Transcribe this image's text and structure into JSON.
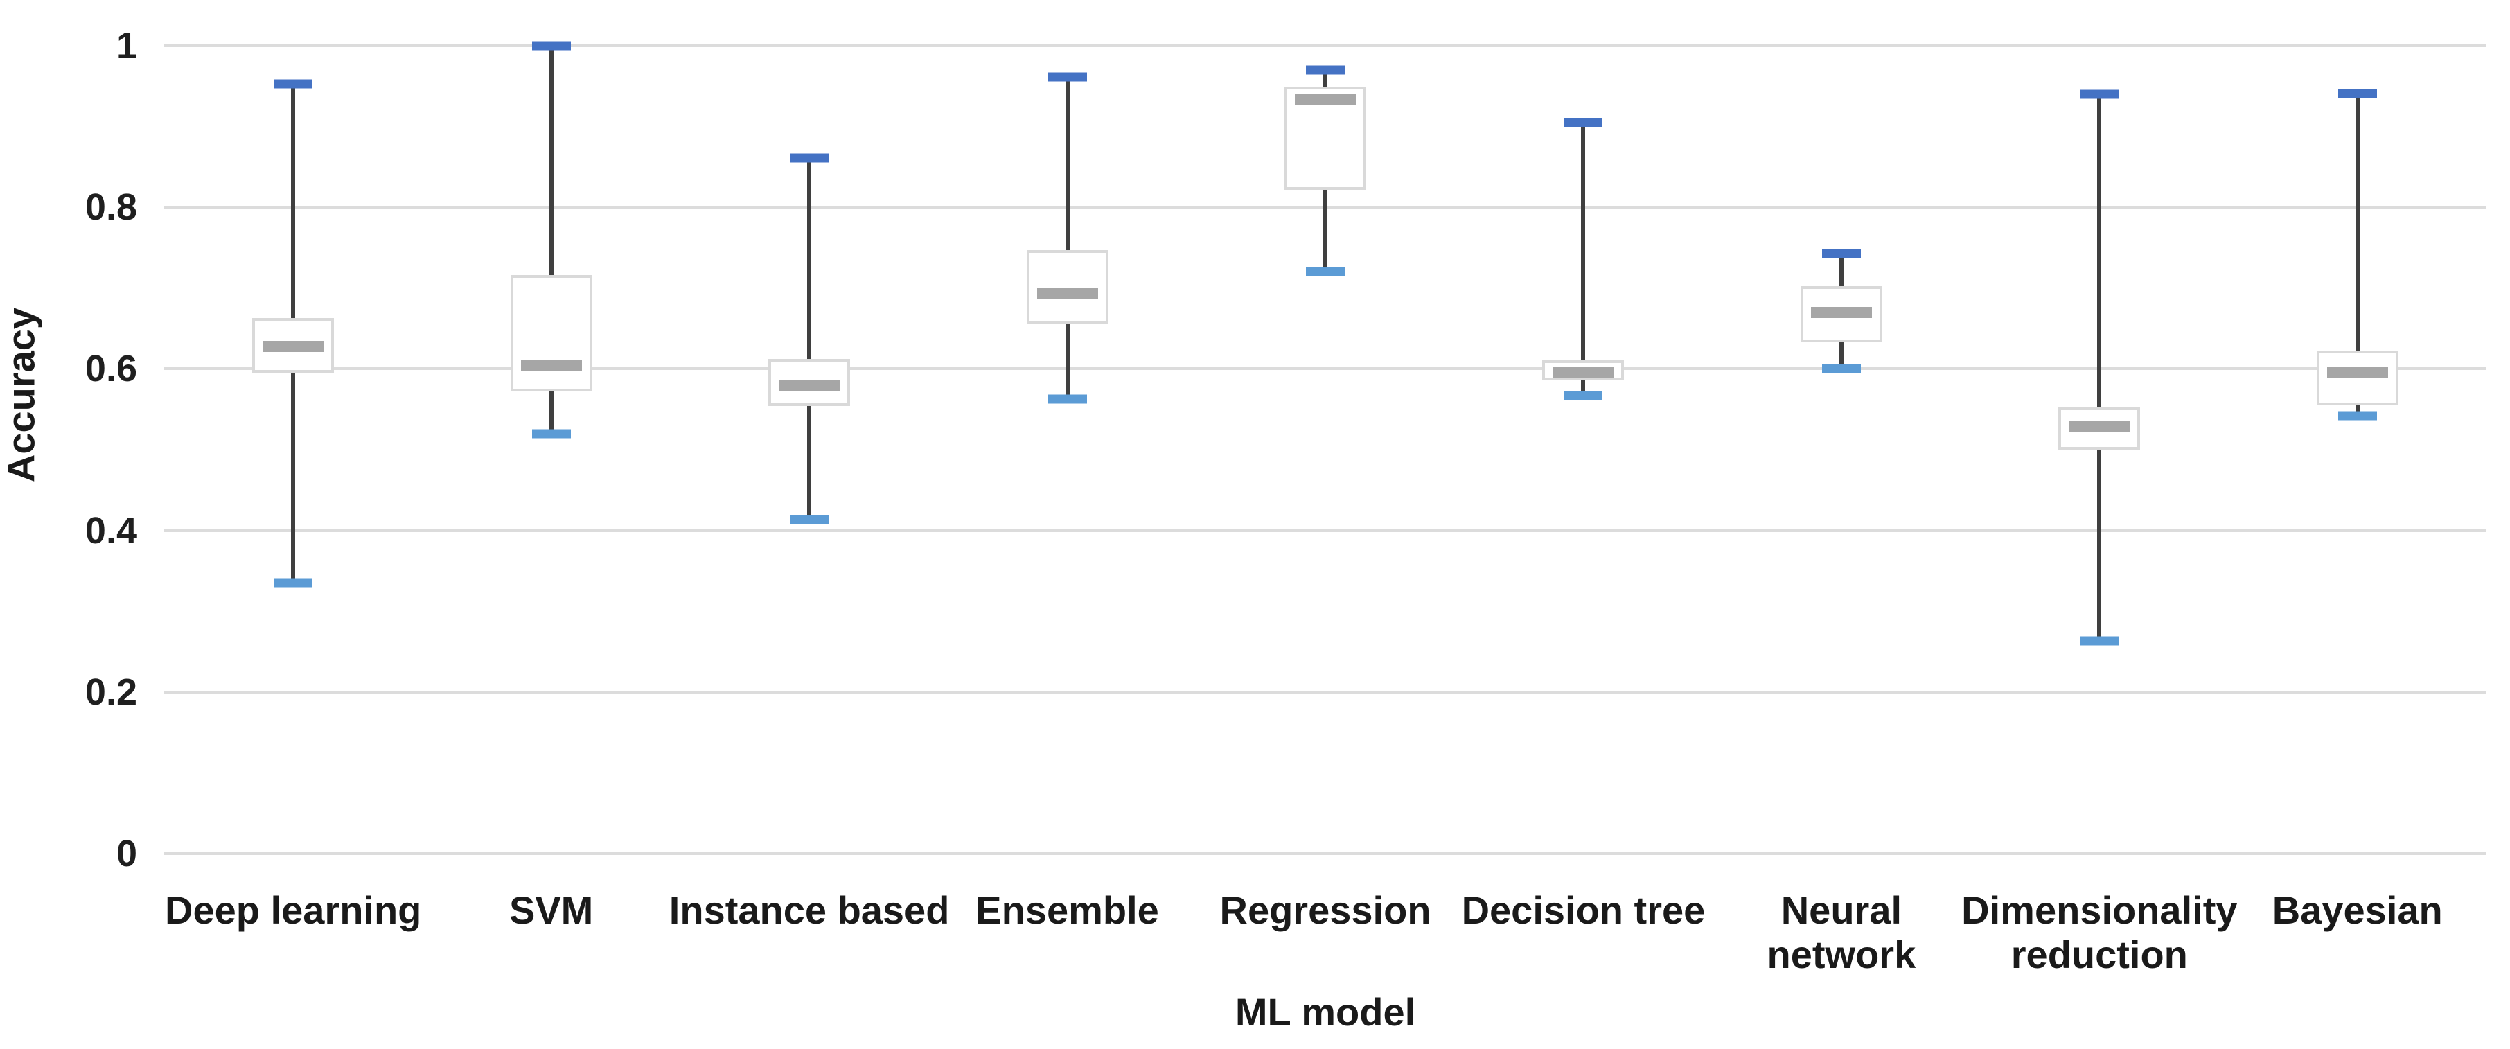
{
  "chart_data": {
    "type": "box",
    "title": "",
    "xlabel": "ML model",
    "ylabel": "Accuracy",
    "ylim": [
      0,
      1
    ],
    "yticks": [
      {
        "value": 0,
        "label": "0"
      },
      {
        "value": 0.2,
        "label": "0.2"
      },
      {
        "value": 0.4,
        "label": "0.4"
      },
      {
        "value": 0.6,
        "label": "0.6"
      },
      {
        "value": 0.8,
        "label": "0.8"
      },
      {
        "value": 1,
        "label": "1"
      }
    ],
    "grid": "horizontal",
    "legend": "none",
    "categories": [
      "Deep learning",
      "SVM",
      "Instance based",
      "Ensemble",
      "Regression",
      "Decision tree",
      "Neural network",
      "Dimensionality reduction",
      "Bayesian"
    ],
    "series": [
      {
        "name": "Deep learning",
        "label_lines": [
          "Deep learning"
        ],
        "min": 0.335,
        "q1": 0.595,
        "median": 0.628,
        "q3": 0.663,
        "max": 0.953
      },
      {
        "name": "SVM",
        "label_lines": [
          "SVM"
        ],
        "min": 0.52,
        "q1": 0.572,
        "median": 0.605,
        "q3": 0.716,
        "max": 1.0
      },
      {
        "name": "Instance based",
        "label_lines": [
          "Instance based"
        ],
        "min": 0.413,
        "q1": 0.554,
        "median": 0.58,
        "q3": 0.612,
        "max": 0.861
      },
      {
        "name": "Ensemble",
        "label_lines": [
          "Ensemble"
        ],
        "min": 0.563,
        "q1": 0.655,
        "median": 0.693,
        "q3": 0.747,
        "max": 0.961
      },
      {
        "name": "Regression",
        "label_lines": [
          "Regression"
        ],
        "min": 0.72,
        "q1": 0.822,
        "median": 0.933,
        "q3": 0.949,
        "max": 0.97
      },
      {
        "name": "Decision tree",
        "label_lines": [
          "Decision tree"
        ],
        "min": 0.567,
        "q1": 0.586,
        "median": 0.595,
        "q3": 0.611,
        "max": 0.905
      },
      {
        "name": "Neural network",
        "label_lines": [
          "Neural",
          "network"
        ],
        "min": 0.6,
        "q1": 0.633,
        "median": 0.67,
        "q3": 0.702,
        "max": 0.743
      },
      {
        "name": "Dimensionality reduction",
        "label_lines": [
          "Dimensionality",
          "reduction"
        ],
        "min": 0.263,
        "q1": 0.5,
        "median": 0.528,
        "q3": 0.552,
        "max": 0.94
      },
      {
        "name": "Bayesian",
        "label_lines": [
          "Bayesian"
        ],
        "min": 0.542,
        "q1": 0.555,
        "median": 0.596,
        "q3": 0.623,
        "max": 0.941
      }
    ],
    "colors": {
      "whisker_cap_top": "#4472C4",
      "whisker_cap_bottom": "#5B9BD5",
      "whisker_line": "#3F3F3F",
      "box_border": "#D9D9D9",
      "box_fill": "#FFFFFF",
      "median": "#A6A6A6",
      "gridline": "#DCDCDC",
      "text": "#1A1A1A",
      "background": "#FFFFFF"
    }
  }
}
